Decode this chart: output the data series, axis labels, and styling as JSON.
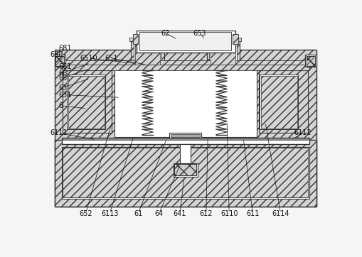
{
  "bg_color": "#f5f5f5",
  "hatch_color": "#666666",
  "line_color": "#333333",
  "white": "#ffffff",
  "light_gray": "#e0e0e0",
  "med_gray": "#cccccc"
}
